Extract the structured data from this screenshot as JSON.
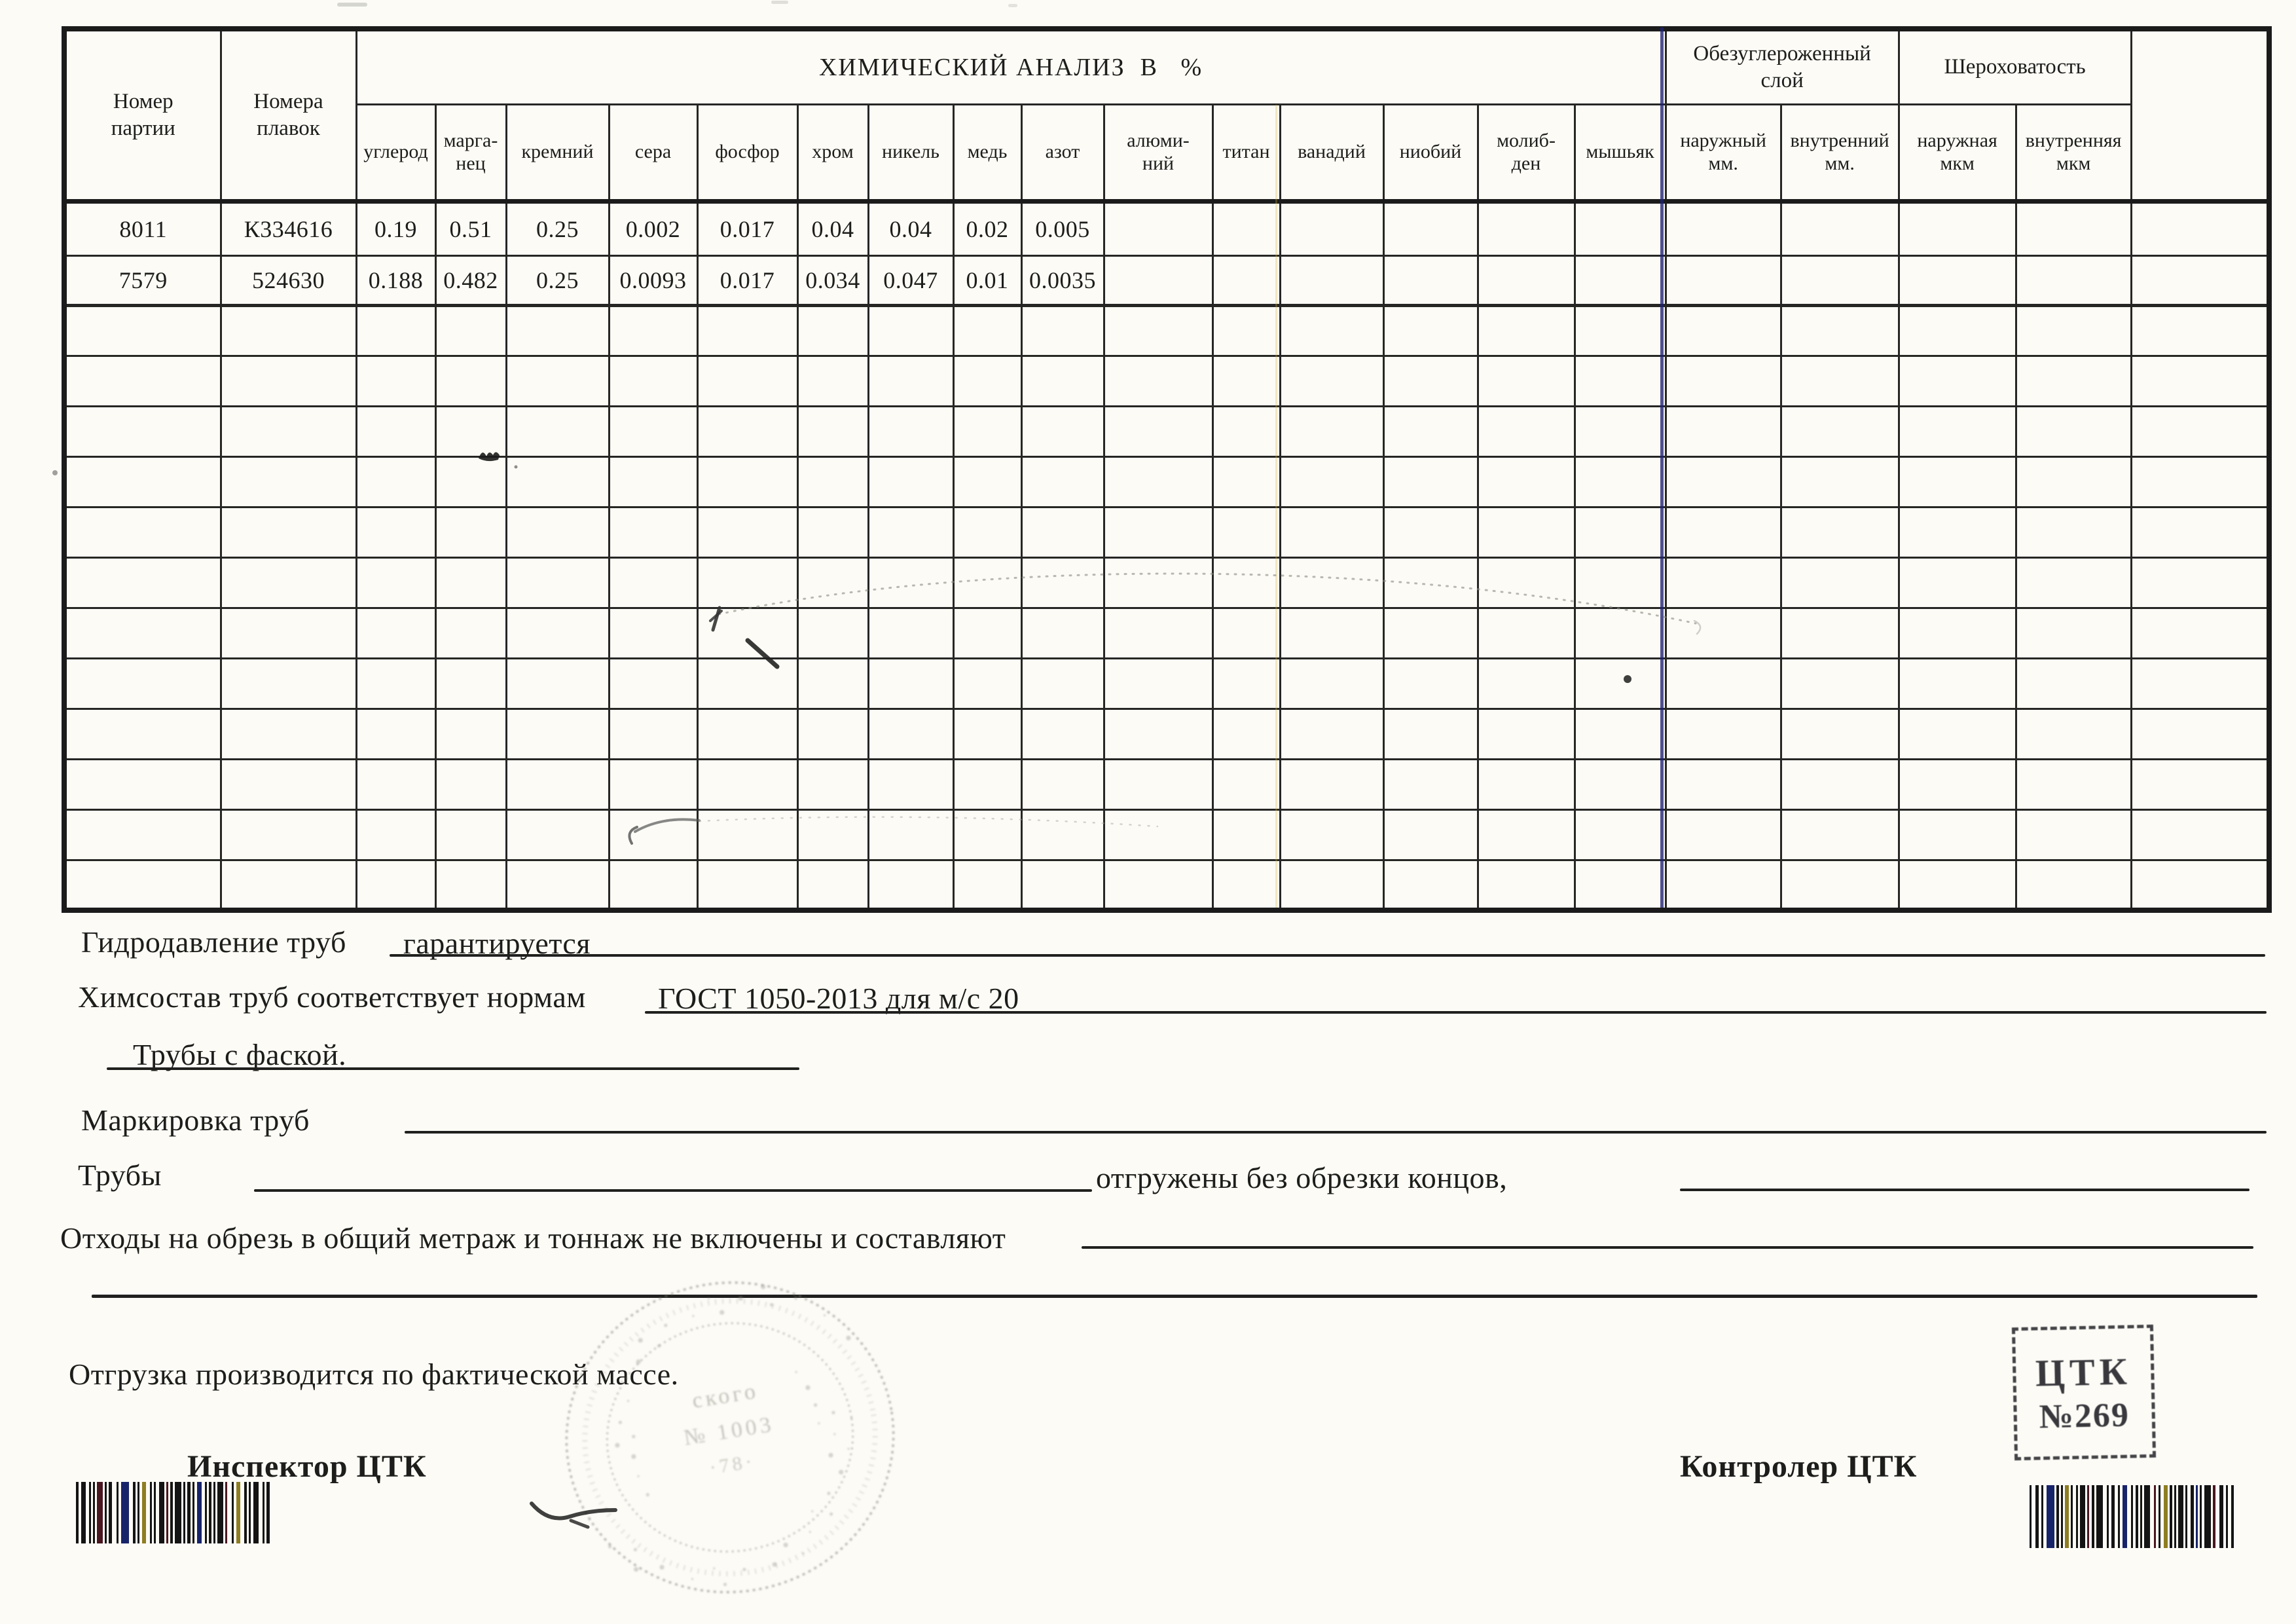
{
  "table": {
    "batch_header": "Номер\nпартии",
    "heat_header": "Номера\nплавок",
    "chem_group_title": "ХИМИЧЕСКИЙ АНАЛИЗ  В   %",
    "decarb_group_title": "Обезуглероженный\nслой",
    "roughness_group_title": "Шероховатость",
    "chem_columns": [
      "углерод",
      "марга-\nнец",
      "кремний",
      "сера",
      "фосфор",
      "хром",
      "никель",
      "медь",
      "азот",
      "алюми-\nний",
      "титан",
      "ванадий",
      "ниобий",
      "молиб-\nден",
      "мышьяк"
    ],
    "decarb_columns": [
      "наружный\nмм.",
      "внутренний\nмм."
    ],
    "roughness_columns": [
      "наружная\nмкм",
      "внутренняя\nмкм"
    ],
    "rows": [
      {
        "batch": "8011",
        "heat": "К334616",
        "values": [
          "0.19",
          "0.51",
          "0.25",
          "0.002",
          "0.017",
          "0.04",
          "0.04",
          "0.02",
          "0.005",
          "",
          "",
          "",
          "",
          "",
          "",
          "",
          "",
          "",
          ""
        ]
      },
      {
        "batch": "7579",
        "heat": "524630",
        "values": [
          "0.188",
          "0.482",
          "0.25",
          "0.0093",
          "0.017",
          "0.034",
          "0.047",
          "0.01",
          "0.0035",
          "",
          "",
          "",
          "",
          "",
          "",
          "",
          "",
          "",
          ""
        ]
      }
    ],
    "empty_row_count": 12
  },
  "notes": {
    "hydro_label": "Гидродавление труб",
    "hydro_value": "гарантируется",
    "chem_label": "Химсостав труб соответствует нормам",
    "chem_value": "ГОСТ 1050-2013 для м/с 20",
    "chamfer_note": "Трубы с фаской.",
    "marking_label": "Маркировка труб",
    "pipes_label": "Трубы",
    "pipes_note": "отгружены без обрезки концов,",
    "waste_label": "Отходы на обрезь в общий метраж и тоннаж не включены и составляют",
    "shipping_note": "Отгрузка производится по фактической массе."
  },
  "signatures": {
    "inspector_label": "Инспектор ЦТК",
    "controller_label": "Контролер ЦТК"
  },
  "stamps": {
    "ctk_line1": "ЦТК",
    "ctk_line2": "№269",
    "round_lines": [
      "ского",
      "№ 1003",
      "·78·"
    ]
  },
  "colors": {
    "ink": "#1d1d1b",
    "blue_line": "#1d2173",
    "stamp_gray": "#8a8a80"
  }
}
